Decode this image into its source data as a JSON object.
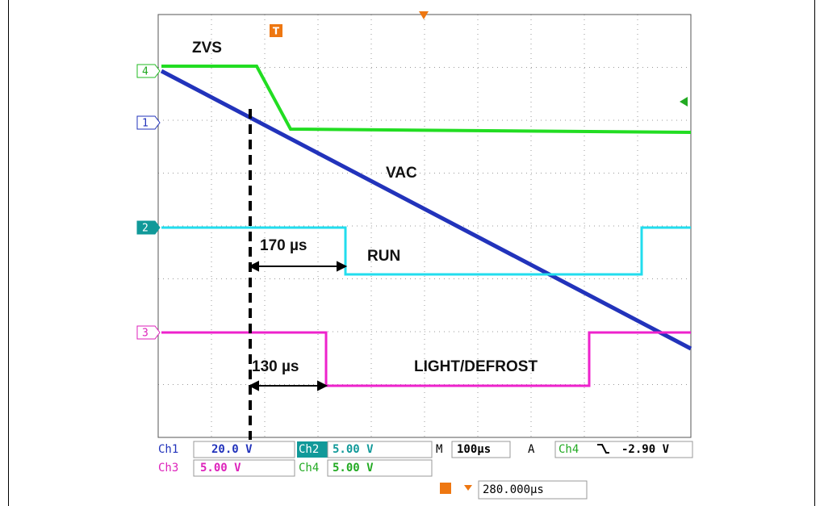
{
  "trace_labels": {
    "zvs": "ZVS",
    "vac": "VAC",
    "run": "RUN",
    "light": "LIGHT/DEFROST"
  },
  "timings": {
    "run_delay": "170 µs",
    "light_delay": "130 µs"
  },
  "channel_markers": [
    "4",
    "1",
    "2",
    "3"
  ],
  "trigger_marker": "T",
  "readout": {
    "ch1": {
      "name": "Ch1",
      "scale": "20.0 V"
    },
    "ch2": {
      "name": "Ch2",
      "scale": "5.00 V"
    },
    "ch3": {
      "name": "Ch3",
      "scale": "5.00 V"
    },
    "ch4": {
      "name": "Ch4",
      "scale": "5.00 V"
    },
    "timebase": {
      "name": "M",
      "scale": "100µs"
    },
    "trigger": {
      "name": "A",
      "source": "Ch4",
      "level": "-2.90 V"
    },
    "position": "280.000µs"
  }
}
